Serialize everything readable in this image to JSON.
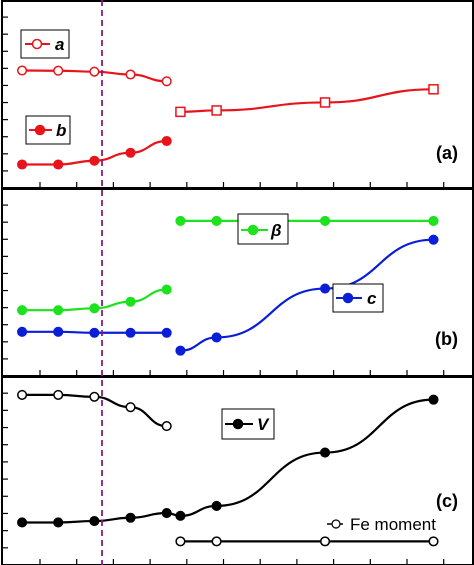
{
  "chart_data": [
    {
      "type": "line",
      "panel_label": "(a)",
      "series": [
        {
          "name": "a",
          "color": "#e8141b",
          "marker": "open-circle",
          "x": [
            0,
            1,
            2,
            3,
            4
          ],
          "y": [
            0.0,
            -0.05,
            -0.25,
            -0.85,
            -2.3
          ]
        },
        {
          "name": "b",
          "color": "#e8141b",
          "marker": "filled-circle",
          "x": [
            0,
            1,
            2,
            3,
            4
          ],
          "y": [
            -20.0,
            -20.0,
            -19.2,
            -17.5,
            -15.0
          ]
        },
        {
          "name": "",
          "color": "#e8141b",
          "marker": "open-square",
          "x": [
            5,
            6,
            9,
            12
          ],
          "y": [
            -8.8,
            -8.5,
            -6.8,
            -4.0
          ]
        }
      ]
    },
    {
      "type": "line",
      "panel_label": "(b)",
      "series": [
        {
          "name": "β",
          "color": "#1de21d",
          "marker": "filled-circle",
          "x": [
            0,
            1,
            2,
            3,
            4,
            5,
            6,
            9,
            12
          ],
          "y": [
            -11.0,
            -11.0,
            -10.6,
            -9.2,
            -6.6,
            8.0,
            8.0,
            8.0,
            8.0
          ]
        },
        {
          "name": "c",
          "color": "#0a1ed8",
          "marker": "filled-circle",
          "x": [
            0,
            1,
            2,
            3,
            4,
            5,
            6,
            9,
            12
          ],
          "y": [
            -15.6,
            -15.6,
            -15.8,
            -15.8,
            -15.8,
            -19.6,
            -16.8,
            -6.4,
            4.0
          ]
        }
      ]
    },
    {
      "type": "line",
      "panel_label": "(c)",
      "series": [
        {
          "name": "V",
          "color": "#000000",
          "marker": "filled-circle",
          "x": [
            0,
            1,
            2,
            3,
            4,
            5,
            6,
            9,
            12
          ],
          "y": [
            -16.0,
            -16.0,
            -15.7,
            -15.0,
            -14.0,
            -14.6,
            -12.5,
            -1.2,
            10.0
          ]
        },
        {
          "name": "Fe moment",
          "color": "#000000",
          "marker": "open-circle",
          "x": [
            0,
            1,
            2,
            3,
            4,
            5,
            6,
            9,
            12
          ],
          "y": [
            11.0,
            11.0,
            10.6,
            8.4,
            4.4,
            -20.0,
            -20.0,
            -20.0,
            -20.0
          ]
        }
      ]
    }
  ]
}
